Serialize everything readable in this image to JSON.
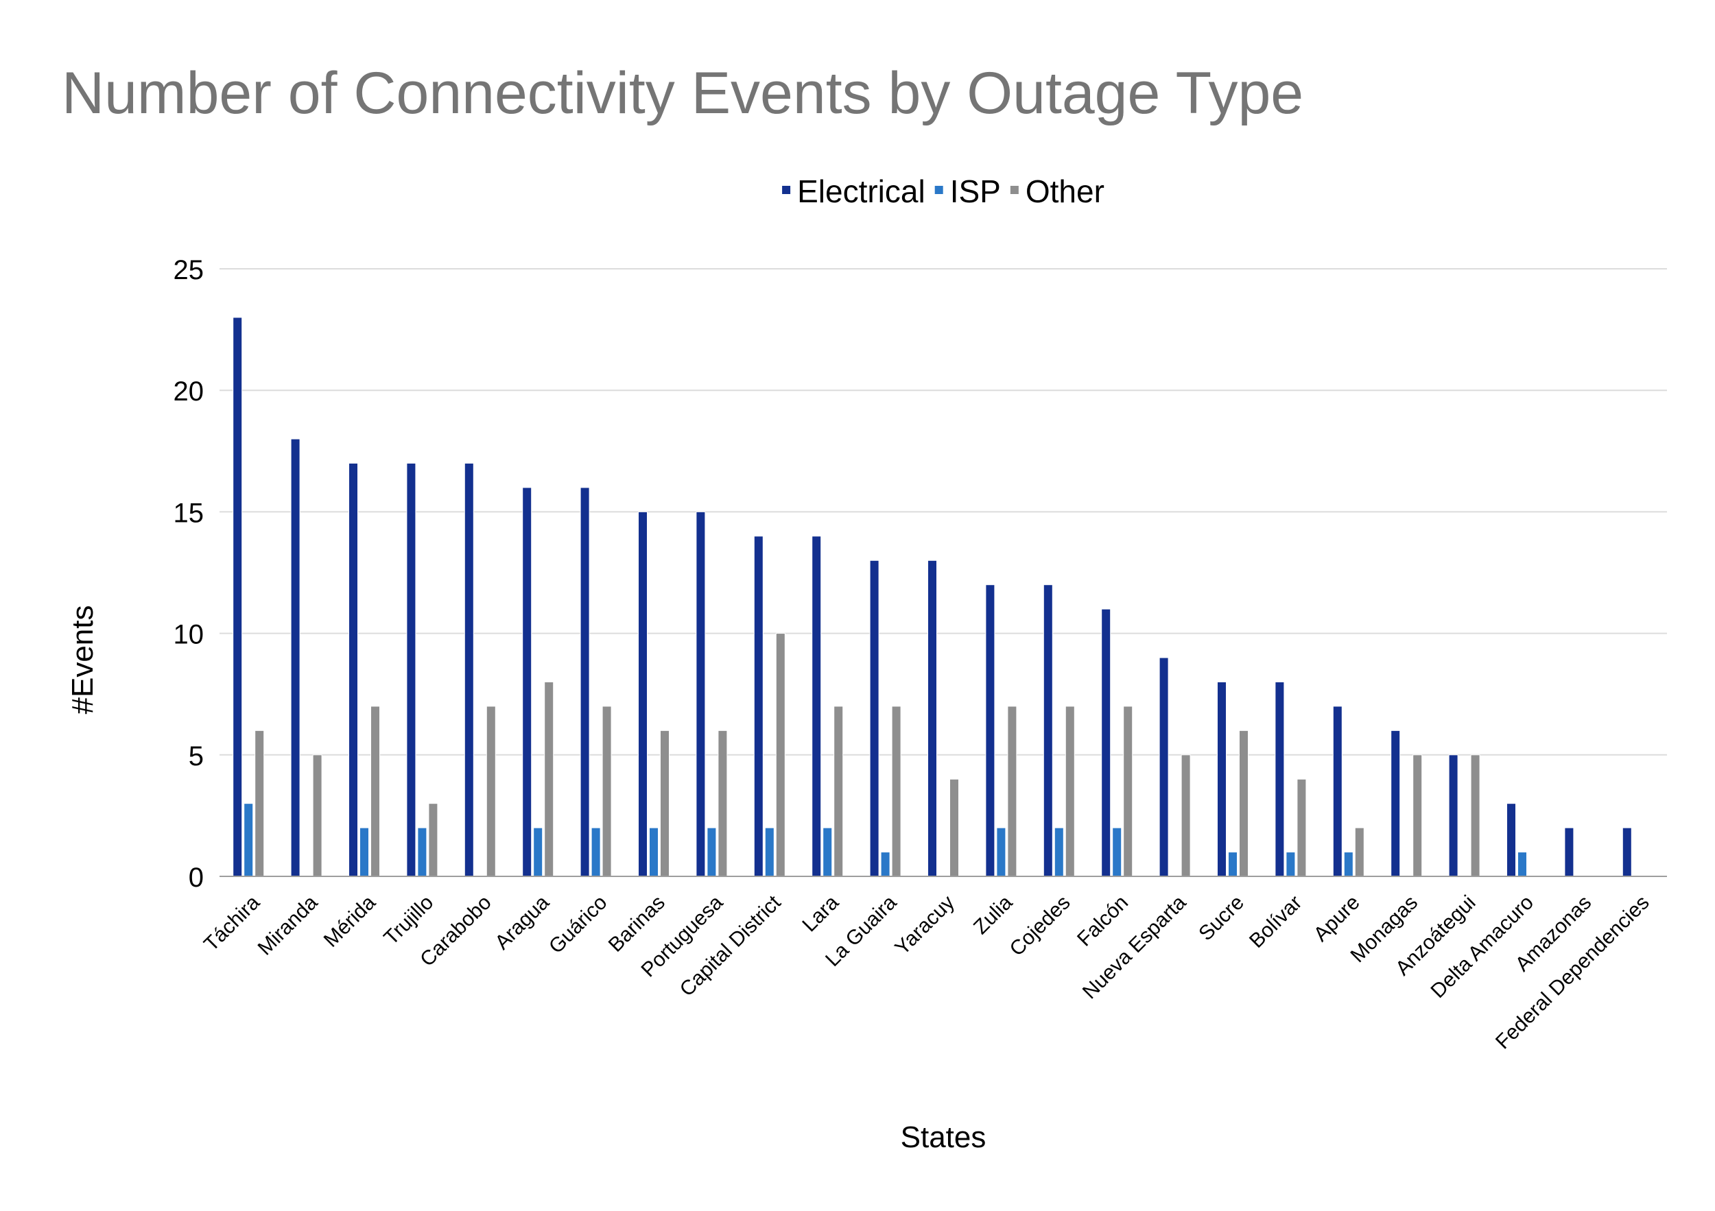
{
  "chart_data": {
    "type": "bar",
    "title": "Number of Connectivity Events by Outage Type",
    "xlabel": "States",
    "ylabel": "#Events",
    "ylim": [
      0,
      25
    ],
    "yticks": [
      0,
      5,
      10,
      15,
      20,
      25
    ],
    "grid": true,
    "legend_position": "top",
    "categories": [
      "Táchira",
      "Miranda",
      "Mérida",
      "Trujillo",
      "Carabobo",
      "Aragua",
      "Guárico",
      "Barinas",
      "Portuguesa",
      "Capital District",
      "Lara",
      "La Guaira",
      "Yaracuy",
      "Zulia",
      "Cojedes",
      "Falcón",
      "Nueva Esparta",
      "Sucre",
      "Bolívar",
      "Apure",
      "Monagas",
      "Anzoátegui",
      "Delta Amacuro",
      "Amazonas",
      "Federal Dependencies"
    ],
    "series": [
      {
        "name": "Electrical",
        "color": "#13308f",
        "values": [
          23,
          18,
          17,
          17,
          17,
          16,
          16,
          15,
          15,
          14,
          14,
          13,
          13,
          12,
          12,
          11,
          9,
          8,
          8,
          7,
          6,
          5,
          3,
          2,
          2
        ]
      },
      {
        "name": "ISP",
        "color": "#2a78c8",
        "values": [
          3,
          0,
          2,
          2,
          0,
          2,
          2,
          2,
          2,
          2,
          2,
          1,
          0,
          2,
          2,
          2,
          0,
          1,
          1,
          1,
          0,
          0,
          1,
          0,
          0
        ]
      },
      {
        "name": "Other",
        "color": "#8e8e8e",
        "values": [
          6,
          5,
          7,
          3,
          7,
          8,
          7,
          6,
          6,
          10,
          7,
          7,
          4,
          7,
          7,
          7,
          5,
          6,
          4,
          2,
          5,
          5,
          0,
          0,
          0
        ]
      }
    ]
  }
}
